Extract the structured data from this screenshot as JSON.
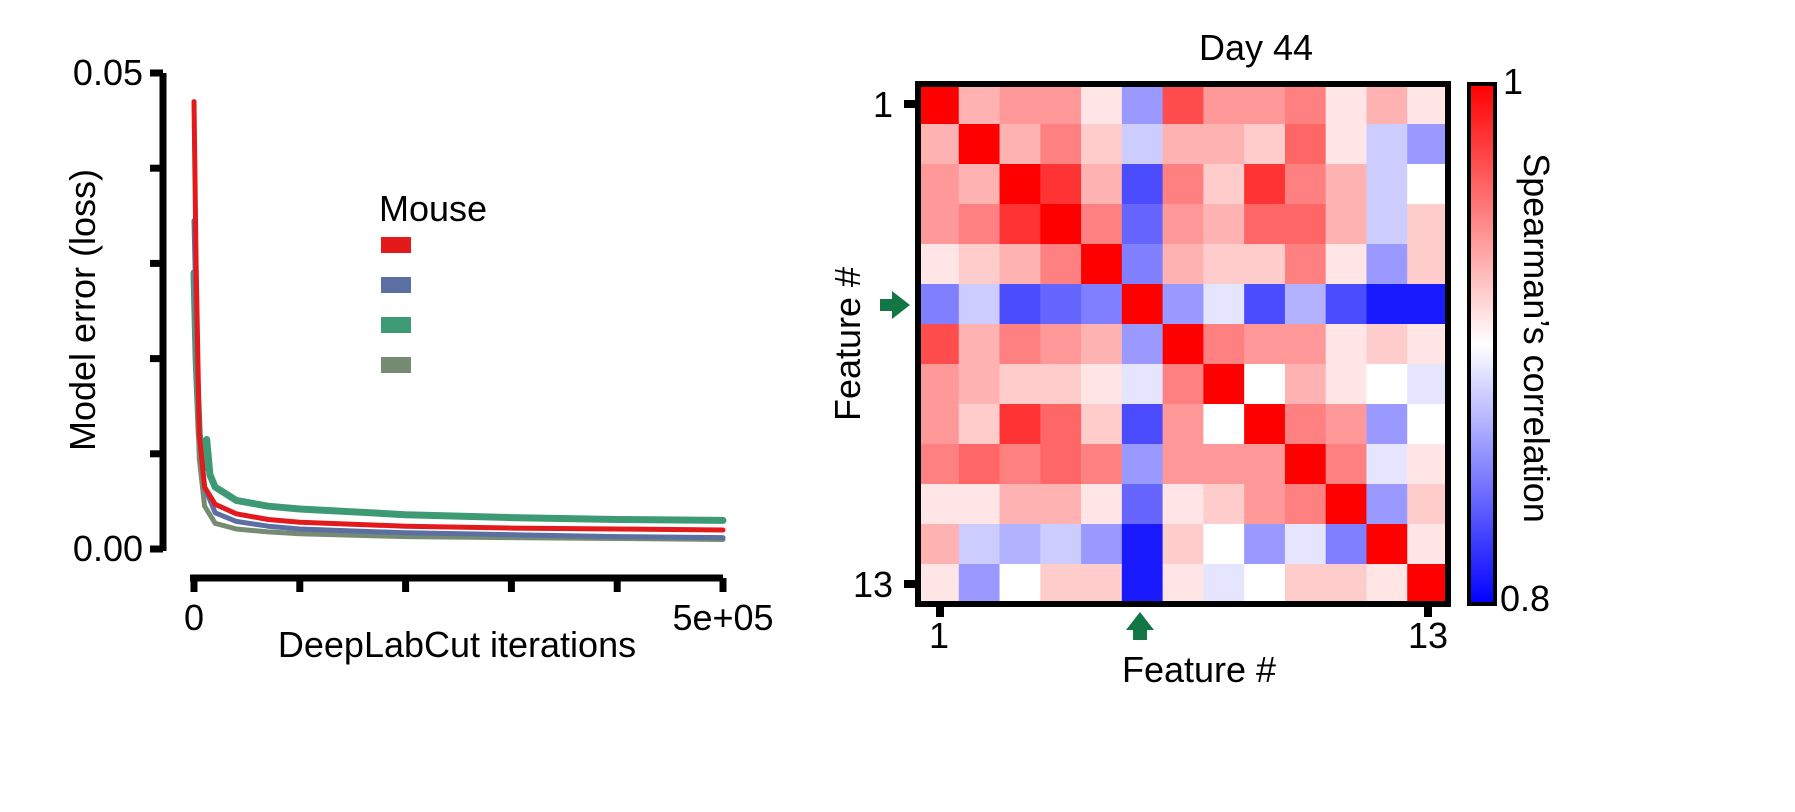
{
  "chart_data": [
    {
      "type": "line",
      "xlabel": "DeepLabCut iterations",
      "ylabel": "Model error (loss)",
      "xlim": [
        0,
        500000
      ],
      "ylim": [
        0,
        0.05
      ],
      "x_tick_labels": [
        "0",
        "5e+05"
      ],
      "x_ticks": [
        0,
        100000,
        200000,
        300000,
        400000,
        500000
      ],
      "y_tick_labels": [
        "0.00",
        "0.05"
      ],
      "y_ticks": [
        0,
        0.01,
        0.02,
        0.03,
        0.04,
        0.05
      ],
      "legend_title": "Mouse",
      "legend_position": "top-right",
      "grid": false,
      "series": [
        {
          "color": "#e31a1c",
          "x": [
            0,
            2000,
            5000,
            10000,
            20000,
            40000,
            70000,
            100000,
            200000,
            300000,
            400000,
            500000
          ],
          "y": [
            0.047,
            0.03,
            0.012,
            0.0065,
            0.0047,
            0.0037,
            0.0031,
            0.0028,
            0.0024,
            0.0022,
            0.0021,
            0.002
          ]
        },
        {
          "color": "#5b6fa3",
          "x": [
            0,
            2000,
            5000,
            10000,
            20000,
            40000,
            70000,
            100000,
            200000,
            300000,
            400000,
            500000
          ],
          "y": [
            0.0345,
            0.025,
            0.012,
            0.0065,
            0.0038,
            0.0029,
            0.0024,
            0.0021,
            0.0017,
            0.0015,
            0.0013,
            0.0012
          ]
        },
        {
          "color": "#3e9a75",
          "x": [
            0,
            2000,
            5000,
            10000,
            12000,
            15000,
            20000,
            40000,
            70000,
            100000,
            200000,
            300000,
            400000,
            500000
          ],
          "y": [
            0.029,
            0.02,
            0.012,
            0.0085,
            0.0115,
            0.0078,
            0.0065,
            0.0051,
            0.0045,
            0.0042,
            0.0036,
            0.0033,
            0.0031,
            0.003
          ]
        },
        {
          "color": "#758b72",
          "x": [
            0,
            2000,
            5000,
            10000,
            20000,
            40000,
            70000,
            100000,
            200000,
            300000,
            400000,
            500000
          ],
          "y": [
            0.029,
            0.02,
            0.0095,
            0.0045,
            0.0027,
            0.0021,
            0.0018,
            0.0016,
            0.0013,
            0.0012,
            0.0011,
            0.001
          ]
        }
      ]
    },
    {
      "type": "heatmap",
      "title": "Day 44",
      "xlabel": "Feature #",
      "ylabel": "Feature #",
      "x_tick_labels": [
        "1",
        "13"
      ],
      "y_tick_labels": [
        "1",
        "13"
      ],
      "colorbar_label": "Spearman’s correlation",
      "colorbar_tick_labels": [
        "1",
        "0.8"
      ],
      "vmin": 0.8,
      "vmax": 1.0,
      "colormap": [
        "#0000ff",
        "#ffffff",
        "#ff0000"
      ],
      "highlighted_feature": 6,
      "marker_color": "#137645",
      "matrix": [
        [
          1.0,
          0.93,
          0.94,
          0.94,
          0.91,
          0.86,
          0.97,
          0.94,
          0.94,
          0.95,
          0.91,
          0.93,
          0.91
        ],
        [
          0.93,
          1.0,
          0.93,
          0.95,
          0.92,
          0.88,
          0.93,
          0.93,
          0.92,
          0.96,
          0.91,
          0.88,
          0.86
        ],
        [
          0.94,
          0.93,
          1.0,
          0.98,
          0.93,
          0.83,
          0.95,
          0.92,
          0.98,
          0.95,
          0.93,
          0.88,
          0.9
        ],
        [
          0.94,
          0.95,
          0.98,
          1.0,
          0.95,
          0.84,
          0.94,
          0.93,
          0.96,
          0.96,
          0.93,
          0.88,
          0.92
        ],
        [
          0.91,
          0.92,
          0.93,
          0.95,
          1.0,
          0.85,
          0.93,
          0.92,
          0.92,
          0.95,
          0.91,
          0.86,
          0.92
        ],
        [
          0.85,
          0.88,
          0.83,
          0.84,
          0.85,
          1.0,
          0.86,
          0.89,
          0.83,
          0.87,
          0.83,
          0.81,
          0.81
        ],
        [
          0.97,
          0.93,
          0.95,
          0.94,
          0.93,
          0.86,
          1.0,
          0.95,
          0.94,
          0.94,
          0.91,
          0.92,
          0.91
        ],
        [
          0.94,
          0.93,
          0.92,
          0.92,
          0.91,
          0.89,
          0.95,
          1.0,
          0.9,
          0.93,
          0.91,
          0.9,
          0.89
        ],
        [
          0.94,
          0.92,
          0.98,
          0.96,
          0.92,
          0.83,
          0.94,
          0.9,
          1.0,
          0.95,
          0.94,
          0.86,
          0.9
        ],
        [
          0.95,
          0.96,
          0.95,
          0.96,
          0.95,
          0.86,
          0.94,
          0.94,
          0.94,
          1.0,
          0.95,
          0.89,
          0.91
        ],
        [
          0.91,
          0.91,
          0.93,
          0.93,
          0.91,
          0.84,
          0.91,
          0.92,
          0.94,
          0.95,
          1.0,
          0.86,
          0.92
        ],
        [
          0.93,
          0.88,
          0.87,
          0.88,
          0.86,
          0.81,
          0.92,
          0.9,
          0.86,
          0.89,
          0.85,
          1.0,
          0.91
        ],
        [
          0.91,
          0.86,
          0.9,
          0.92,
          0.92,
          0.81,
          0.91,
          0.89,
          0.9,
          0.92,
          0.92,
          0.91,
          1.0
        ]
      ]
    }
  ]
}
